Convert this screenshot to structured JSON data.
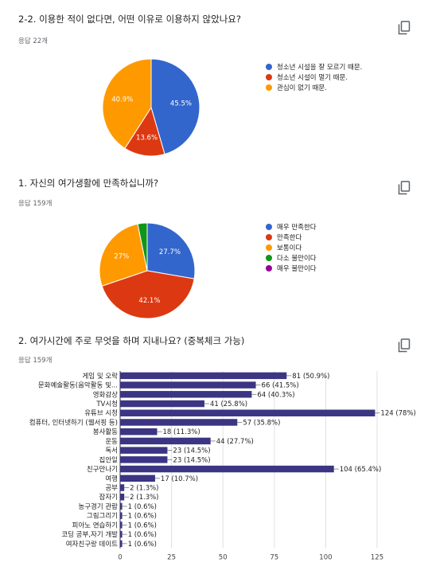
{
  "questions": [
    {
      "title": "2-2. 이용한 적이 없다면, 어떤 이유로 이용하지 않았나요?",
      "responses": "응답 22개",
      "copy_icon": "copy-icon"
    },
    {
      "title": "1. 자신의 여가생활에 만족하십니까?",
      "responses": "응답 159개",
      "copy_icon": "copy-icon"
    },
    {
      "title": "2. 여가시간에 주로 무엇을 하며 지내나요? (중복체크 가능)",
      "responses": "응답 159개",
      "copy_icon": "copy-icon"
    }
  ],
  "chart_data": [
    {
      "type": "pie",
      "categories": [
        "청소년 시설을 잘 모르기 때문.",
        "청소년 시설이 멀기 때문.",
        "관심이 없기 때문."
      ],
      "values": [
        45.5,
        13.6,
        40.9
      ],
      "slice_labels": [
        "45.5%",
        "13.6%",
        "40.9%"
      ],
      "colors": [
        "#3366cc",
        "#dc3912",
        "#ff9900"
      ],
      "legend": "right"
    },
    {
      "type": "pie",
      "categories": [
        "매우 만족한다",
        "만족한다",
        "보통이다",
        "다소 불만이다",
        "매우 불만이다"
      ],
      "values": [
        27.7,
        42.1,
        27.0,
        3.2,
        0
      ],
      "slice_labels": [
        "27.7%",
        "42.1%",
        "27%",
        "",
        ""
      ],
      "colors": [
        "#3366cc",
        "#dc3912",
        "#ff9900",
        "#109618",
        "#990099"
      ],
      "legend": "right"
    },
    {
      "type": "bar",
      "orientation": "horizontal",
      "categories": [
        "게임 및 오락",
        "문화예술활동(음악활동 및...",
        "영화감상",
        "TV시청",
        "유튜브 시청",
        "컴퓨터, 인터넷하기 (웹서핑 등)",
        "봉사활동",
        "운동",
        "독서",
        "집안일",
        "친구만나기",
        "여행",
        "공부",
        "잠자기",
        "농구경기 관람",
        "그림그리기",
        "피아노 연습하기",
        "코딩 공부,자기 개발",
        "여자친구랑 데이트"
      ],
      "values": [
        81,
        66,
        64,
        41,
        124,
        57,
        18,
        44,
        23,
        23,
        104,
        17,
        2,
        2,
        1,
        1,
        1,
        1,
        1
      ],
      "value_labels": [
        "81 (50.9%)",
        "66 (41.5%)",
        "64 (40.3%)",
        "41 (25.8%)",
        "124 (78%)",
        "57 (35.8%)",
        "18 (11.3%)",
        "44 (27.7%)",
        "23 (14.5%)",
        "23 (14.5%)",
        "104 (65.4%)",
        "17 (10.7%)",
        "2 (1.3%)",
        "2 (1.3%)",
        "1 (0.6%)",
        "1 (0.6%)",
        "1 (0.6%)",
        "1 (0.6%)",
        "1 (0.6%)"
      ],
      "xticks": [
        "0",
        "25",
        "50",
        "75",
        "100",
        "125"
      ],
      "xlim": [
        0,
        125
      ],
      "color": "#3b3583",
      "grid": true
    }
  ]
}
